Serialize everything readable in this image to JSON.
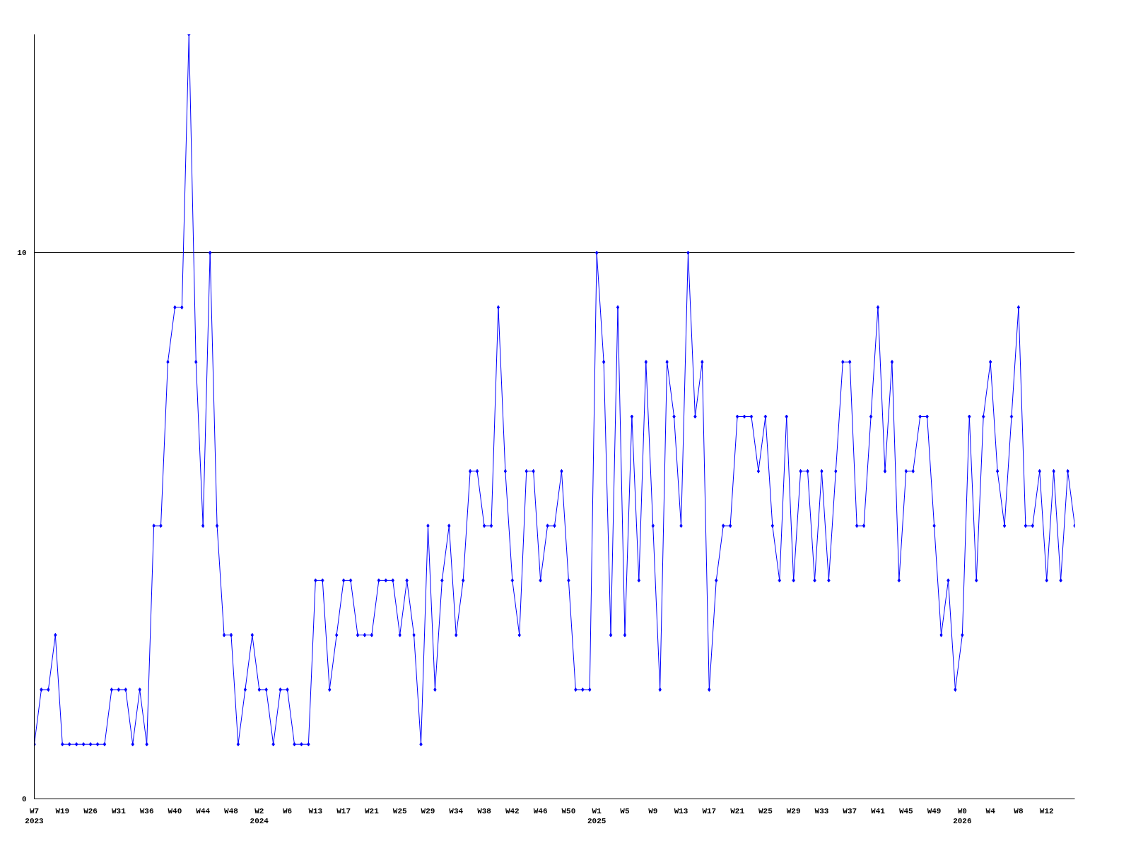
{
  "chart_data": {
    "type": "line",
    "color": "#0000ff",
    "marker": "diamond",
    "grid": "y",
    "ylim": [
      0,
      14
    ],
    "yticks": [
      0,
      10
    ],
    "categories": [
      "W7\n2023",
      null,
      null,
      null,
      "W19",
      null,
      null,
      null,
      "W26",
      null,
      null,
      null,
      "W31",
      null,
      null,
      null,
      "W36",
      null,
      null,
      null,
      "W40",
      null,
      null,
      null,
      "W44",
      null,
      null,
      null,
      "W48",
      null,
      null,
      null,
      "W2\n2024",
      null,
      null,
      null,
      "W6",
      null,
      null,
      null,
      "W13",
      null,
      null,
      null,
      "W17",
      null,
      null,
      null,
      "W21",
      null,
      null,
      null,
      "W25",
      null,
      null,
      null,
      "W29",
      null,
      null,
      null,
      "W34",
      null,
      null,
      null,
      "W38",
      null,
      null,
      null,
      "W42",
      null,
      null,
      null,
      "W46",
      null,
      null,
      null,
      "W50",
      null,
      null,
      null,
      "W1\n2025",
      null,
      null,
      null,
      "W5",
      null,
      null,
      null,
      "W9",
      null,
      null,
      null,
      "W13",
      null,
      null,
      null,
      "W17",
      null,
      null,
      null,
      "W21",
      null,
      null,
      null,
      "W25",
      null,
      null,
      null,
      "W29",
      null,
      null,
      null,
      "W33",
      null,
      null,
      null,
      "W37",
      null,
      null,
      null,
      "W41",
      null,
      null,
      null,
      "W45",
      null,
      null,
      null,
      "W49",
      null,
      null,
      null,
      "W0\n2026",
      null,
      null,
      null,
      "W4",
      null,
      null,
      null,
      "W8",
      null,
      null,
      null,
      "W12",
      null,
      null,
      null,
      null
    ],
    "values": [
      1,
      2,
      2,
      3,
      1,
      1,
      1,
      1,
      1,
      1,
      1,
      2,
      2,
      2,
      1,
      2,
      1,
      5,
      5,
      8,
      9,
      9,
      14,
      8,
      5,
      10,
      5,
      3,
      3,
      1,
      2,
      3,
      2,
      2,
      1,
      2,
      2,
      1,
      1,
      1,
      4,
      4,
      2,
      3,
      4,
      4,
      3,
      3,
      3,
      4,
      4,
      4,
      3,
      4,
      3,
      1,
      5,
      2,
      4,
      5,
      3,
      4,
      6,
      6,
      5,
      5,
      9,
      6,
      4,
      3,
      6,
      6,
      4,
      5,
      5,
      6,
      4,
      2,
      2,
      2,
      10,
      8,
      3,
      9,
      3,
      7,
      4,
      8,
      5,
      2,
      8,
      7,
      5,
      10,
      7,
      8,
      2,
      4,
      5,
      5,
      7,
      7,
      7,
      6,
      7,
      5,
      4,
      7,
      4,
      6,
      6,
      4,
      6,
      4,
      6,
      8,
      8,
      5,
      5,
      7,
      9,
      6,
      8,
      4,
      6,
      6,
      7,
      7,
      5,
      3,
      4,
      2,
      3,
      7,
      4,
      7,
      8,
      6,
      5,
      7,
      9,
      5,
      5,
      6,
      4,
      6,
      4,
      6,
      5
    ]
  }
}
